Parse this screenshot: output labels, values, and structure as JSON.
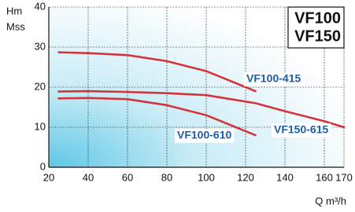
{
  "chart_data": {
    "type": "line",
    "title_lines": [
      "VF100",
      "VF150"
    ],
    "y_label_lines": [
      "Hm",
      "Mss"
    ],
    "x_label": "Q m³/h",
    "x": [
      25,
      40,
      60,
      80,
      100,
      125,
      140,
      160,
      170
    ],
    "series": [
      {
        "name": "VF100-415",
        "color": "#d3343b",
        "values": [
          28.7,
          28.5,
          28,
          26.5,
          24,
          19,
          null,
          null,
          null
        ]
      },
      {
        "name": "VF150-615",
        "color": "#d3343b",
        "values": [
          18.9,
          19,
          18.8,
          18.5,
          18,
          16,
          14,
          11.5,
          10
        ]
      },
      {
        "name": "VF100-610",
        "color": "#d3343b",
        "values": [
          17.2,
          17.3,
          17,
          15.5,
          13,
          8,
          null,
          null,
          null
        ]
      }
    ],
    "xlim": [
      20,
      170
    ],
    "ylim": [
      0,
      40
    ],
    "xticks": [
      20,
      40,
      60,
      80,
      100,
      120,
      140,
      160,
      170
    ],
    "yticks": [
      0,
      10,
      20,
      30,
      40
    ],
    "grid": true
  }
}
